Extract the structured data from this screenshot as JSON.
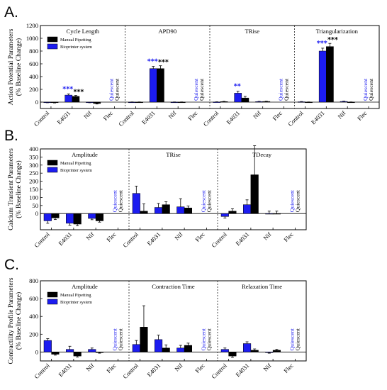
{
  "colors": {
    "black": "#000000",
    "blue": "#1c1cf0"
  },
  "legend": [
    "Manual Pipetting",
    "Bioprinter system"
  ],
  "quiescent_label": "Quiescent",
  "chart_data": [
    {
      "type": "bar",
      "letter": "A.",
      "ylabel": [
        "Action Potential Parameters",
        "(% Baseline Change)"
      ],
      "ylim": [
        -100,
        1200
      ],
      "yticks": [
        0,
        200,
        400,
        600,
        800,
        1000,
        1200
      ],
      "grid": false,
      "legend_position": "top-left",
      "categories": [
        "Control",
        "E4031",
        "Nif",
        "Flec"
      ],
      "groups": [
        {
          "title": "Cycle Length",
          "series": [
            {
              "name": "Manual Pipetting",
              "values": [
                -8,
                90,
                -22,
                null
              ],
              "errors": [
                5,
                15,
                8,
                null
              ]
            },
            {
              "name": "Bioprinter system",
              "values": [
                -6,
                110,
                -5,
                null
              ],
              "errors": [
                4,
                18,
                5,
                null
              ]
            }
          ],
          "annotations": [
            {
              "category": "E4031",
              "series": "Bioprinter system",
              "text": "***"
            },
            {
              "category": "E4031",
              "series": "Manual Pipetting",
              "text": "***"
            }
          ],
          "quiescent": [
            "Flec"
          ]
        },
        {
          "title": "APD90",
          "series": [
            {
              "name": "Manual Pipetting",
              "values": [
                0,
                525,
                0,
                null
              ],
              "errors": [
                3,
                45,
                3,
                null
              ]
            },
            {
              "name": "Bioprinter system",
              "values": [
                0,
                525,
                0,
                null
              ],
              "errors": [
                3,
                35,
                3,
                null
              ]
            }
          ],
          "annotations": [
            {
              "category": "E4031",
              "series": "Bioprinter system",
              "text": "***"
            },
            {
              "category": "E4031",
              "series": "Manual Pipetting",
              "text": "***"
            }
          ],
          "quiescent": [
            "Flec"
          ]
        },
        {
          "title": "TRise",
          "series": [
            {
              "name": "Manual Pipetting",
              "values": [
                8,
                65,
                10,
                null
              ],
              "errors": [
                4,
                25,
                4,
                null
              ]
            },
            {
              "name": "Bioprinter system",
              "values": [
                2,
                140,
                8,
                null
              ],
              "errors": [
                3,
                30,
                4,
                null
              ]
            }
          ],
          "annotations": [
            {
              "category": "E4031",
              "series": "Bioprinter system",
              "text": "**"
            }
          ],
          "quiescent": [
            "Flec"
          ]
        },
        {
          "title": "Triangularization",
          "series": [
            {
              "name": "Manual Pipetting",
              "values": [
                0,
                870,
                0,
                null
              ],
              "errors": [
                3,
                50,
                3,
                null
              ]
            },
            {
              "name": "Bioprinter system",
              "values": [
                5,
                800,
                10,
                null
              ],
              "errors": [
                4,
                45,
                5,
                null
              ]
            }
          ],
          "annotations": [
            {
              "category": "E4031",
              "series": "Bioprinter system",
              "text": "***"
            },
            {
              "category": "E4031",
              "series": "Manual Pipetting",
              "text": "***"
            }
          ],
          "quiescent": [
            "Flec"
          ]
        }
      ]
    },
    {
      "type": "bar",
      "letter": "B.",
      "ylabel": [
        "Calcium Transient Parameters",
        "(% Baseline Change)"
      ],
      "ylim": [
        -100,
        400
      ],
      "yticks": [
        0,
        50,
        100,
        150,
        200,
        250,
        300,
        350,
        400
      ],
      "grid": false,
      "legend_position": "top-left",
      "categories": [
        "Control",
        "E4031",
        "Nif",
        "Flec"
      ],
      "groups": [
        {
          "title": "Amplitude",
          "series": [
            {
              "name": "Manual Pipetting",
              "values": [
                -27,
                -65,
                -45,
                null
              ],
              "errors": [
                10,
                10,
                8,
                null
              ]
            },
            {
              "name": "Bioprinter system",
              "values": [
                -45,
                -60,
                -30,
                null
              ],
              "errors": [
                15,
                12,
                8,
                null
              ]
            }
          ],
          "annotations": [],
          "quiescent": [
            "Flec"
          ]
        },
        {
          "title": "TRise",
          "series": [
            {
              "name": "Manual Pipetting",
              "values": [
                15,
                55,
                35,
                null
              ],
              "errors": [
                45,
                18,
                12,
                null
              ]
            },
            {
              "name": "Bioprinter system",
              "values": [
                125,
                38,
                42,
                null
              ],
              "errors": [
                45,
                25,
                50,
                null
              ]
            }
          ],
          "annotations": [],
          "quiescent": [
            "Flec"
          ]
        },
        {
          "title": "TDecay",
          "series": [
            {
              "name": "Manual Pipetting",
              "values": [
                15,
                240,
                0,
                null
              ],
              "errors": [
                15,
                180,
                15,
                null
              ]
            },
            {
              "name": "Bioprinter system",
              "values": [
                -18,
                55,
                0,
                null
              ],
              "errors": [
                10,
                30,
                15,
                null
              ]
            }
          ],
          "annotations": [],
          "quiescent": [
            "Flec"
          ]
        }
      ]
    },
    {
      "type": "bar",
      "letter": "C.",
      "ylabel": [
        "Contractility Profile Parameters",
        "(% Baseline Change)"
      ],
      "ylim": [
        -100,
        800
      ],
      "yticks": [
        0,
        200,
        400,
        600,
        800
      ],
      "grid": false,
      "legend_position": "top-left",
      "categories": [
        "Control",
        "E4031",
        "Nif",
        "Flec"
      ],
      "groups": [
        {
          "title": "Amplitude",
          "series": [
            {
              "name": "Manual Pipetting",
              "values": [
                -25,
                -45,
                -5,
                null
              ],
              "errors": [
                10,
                12,
                8,
                null
              ]
            },
            {
              "name": "Bioprinter system",
              "values": [
                130,
                30,
                30,
                null
              ],
              "errors": [
                20,
                35,
                15,
                null
              ]
            }
          ],
          "annotations": [],
          "quiescent": [
            "Flec"
          ]
        },
        {
          "title": "Contraction Time",
          "series": [
            {
              "name": "Manual Pipetting",
              "values": [
                280,
                45,
                75,
                null
              ],
              "errors": [
                240,
                35,
                25,
                null
              ]
            },
            {
              "name": "Bioprinter system",
              "values": [
                85,
                140,
                45,
                null
              ],
              "errors": [
                45,
                50,
                30,
                null
              ]
            }
          ],
          "annotations": [],
          "quiescent": [
            "Flec"
          ]
        },
        {
          "title": "Relaxation Time",
          "series": [
            {
              "name": "Manual Pipetting",
              "values": [
                -45,
                20,
                20,
                null
              ],
              "errors": [
                15,
                15,
                10,
                null
              ]
            },
            {
              "name": "Bioprinter system",
              "values": [
                30,
                95,
                -5,
                null
              ],
              "errors": [
                15,
                20,
                8,
                null
              ]
            }
          ],
          "annotations": [],
          "quiescent": [
            "Flec"
          ]
        }
      ]
    }
  ]
}
